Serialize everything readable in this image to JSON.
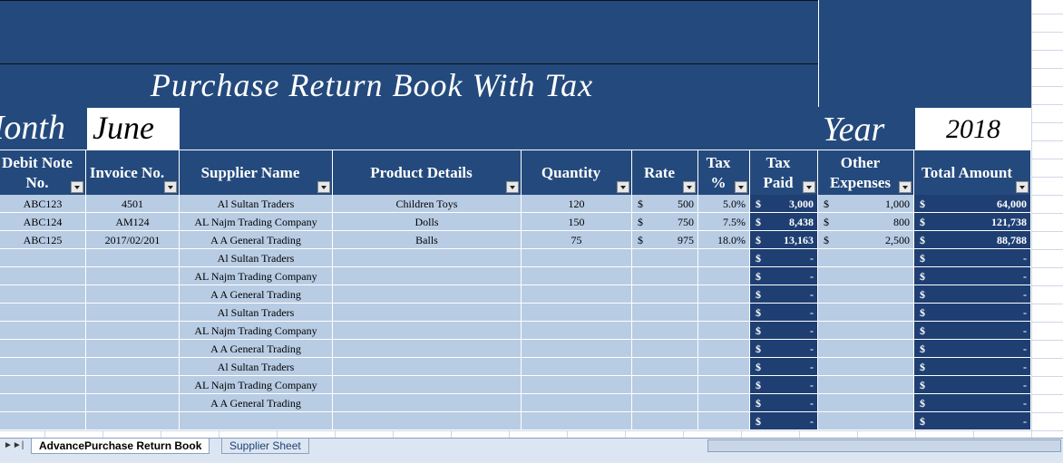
{
  "header": {
    "title": "Purchase Return Book With Tax",
    "month_label": "Month",
    "month": "June",
    "year_label": "Year",
    "year": "2018"
  },
  "table": {
    "currency": "$",
    "columns": [
      "Debit Note No.",
      "Invoice No.",
      "Supplier Name",
      "Product Details",
      "Quantity",
      "Rate",
      "Tax %",
      "Tax Paid",
      "Other Expenses",
      "Total Amount"
    ],
    "rows": [
      [
        "ABC123",
        "4501",
        "Al Sultan Traders",
        "Children Toys",
        "120",
        "500",
        "5.0%",
        "3,000",
        "1,000",
        "64,000"
      ],
      [
        "ABC124",
        "AM124",
        "AL Najm Trading Company",
        "Dolls",
        "150",
        "750",
        "7.5%",
        "8,438",
        "800",
        "121,738"
      ],
      [
        "ABC125",
        "2017/02/201",
        "A A General Trading",
        "Balls",
        "75",
        "975",
        "18.0%",
        "13,163",
        "2,500",
        "88,788"
      ],
      [
        null,
        null,
        "Al Sultan Traders",
        null,
        null,
        null,
        null,
        "-",
        null,
        "-"
      ],
      [
        null,
        null,
        "AL Najm Trading Company",
        null,
        null,
        null,
        null,
        "-",
        null,
        "-"
      ],
      [
        null,
        null,
        "A A General Trading",
        null,
        null,
        null,
        null,
        "-",
        null,
        "-"
      ],
      [
        null,
        null,
        "Al Sultan Traders",
        null,
        null,
        null,
        null,
        "-",
        null,
        "-"
      ],
      [
        null,
        null,
        "AL Najm Trading Company",
        null,
        null,
        null,
        null,
        "-",
        null,
        "-"
      ],
      [
        null,
        null,
        "A A General Trading",
        null,
        null,
        null,
        null,
        "-",
        null,
        "-"
      ],
      [
        null,
        null,
        "Al Sultan Traders",
        null,
        null,
        null,
        null,
        "-",
        null,
        "-"
      ],
      [
        null,
        null,
        "AL Najm Trading Company",
        null,
        null,
        null,
        null,
        "-",
        null,
        "-"
      ],
      [
        null,
        null,
        "A A General Trading",
        null,
        null,
        null,
        null,
        "-",
        null,
        "-"
      ],
      [
        null,
        null,
        null,
        null,
        null,
        null,
        null,
        "-",
        null,
        "-"
      ]
    ]
  },
  "tabs": [
    "AdvancePurchase Return Book",
    "Supplier Sheet"
  ]
}
